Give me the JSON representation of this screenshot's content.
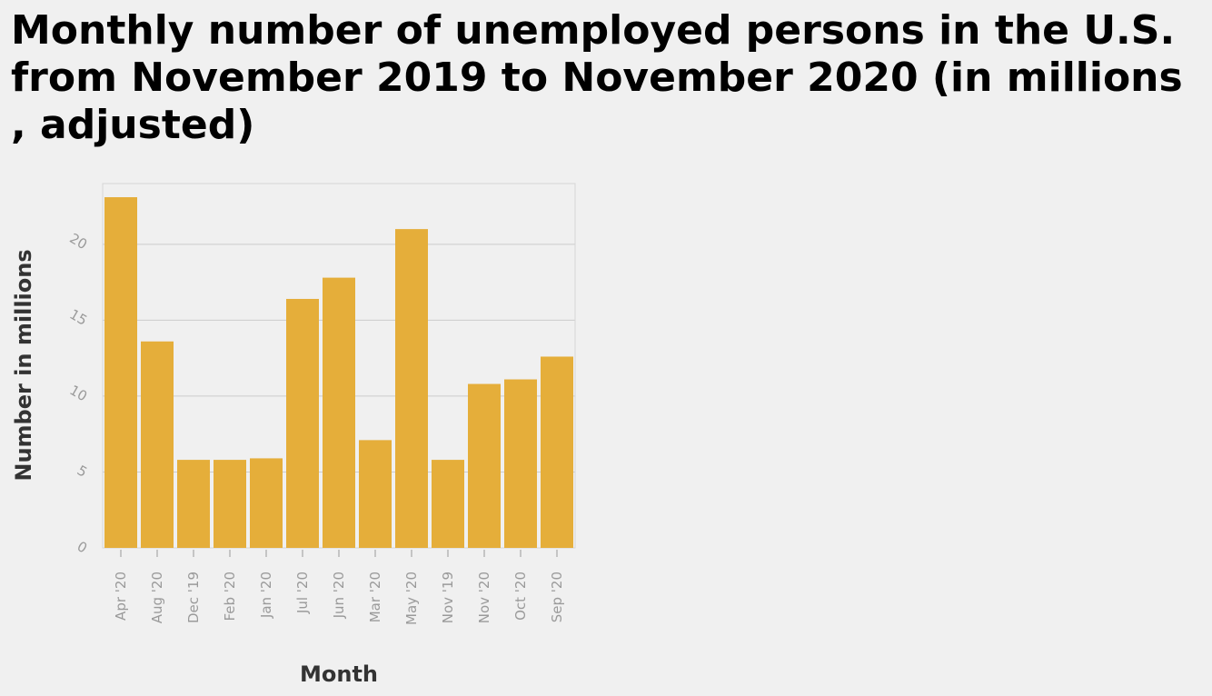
{
  "chart_data": {
    "type": "bar",
    "title": "Monthly number of unemployed persons in the U.S. from November 2019 to November 2020 (in millions , adjusted)",
    "xlabel": "Month",
    "ylabel": "Number in millions",
    "categories": [
      "Apr '20",
      "Aug '20",
      "Dec '19",
      "Feb '20",
      "Jan '20",
      "Jul '20",
      "Jun '20",
      "Mar '20",
      "May '20",
      "Nov '19",
      "Nov '20",
      "Oct '20",
      "Sep '20"
    ],
    "values": [
      23.1,
      13.6,
      5.8,
      5.8,
      5.9,
      16.4,
      17.8,
      7.1,
      21.0,
      5.8,
      10.8,
      11.1,
      12.6
    ],
    "ylim": [
      0,
      24
    ],
    "yticks": [
      0,
      5,
      10,
      15,
      20
    ],
    "grid": true,
    "bar_color": "#e5ae3a",
    "grid_color": "#cccccc"
  }
}
